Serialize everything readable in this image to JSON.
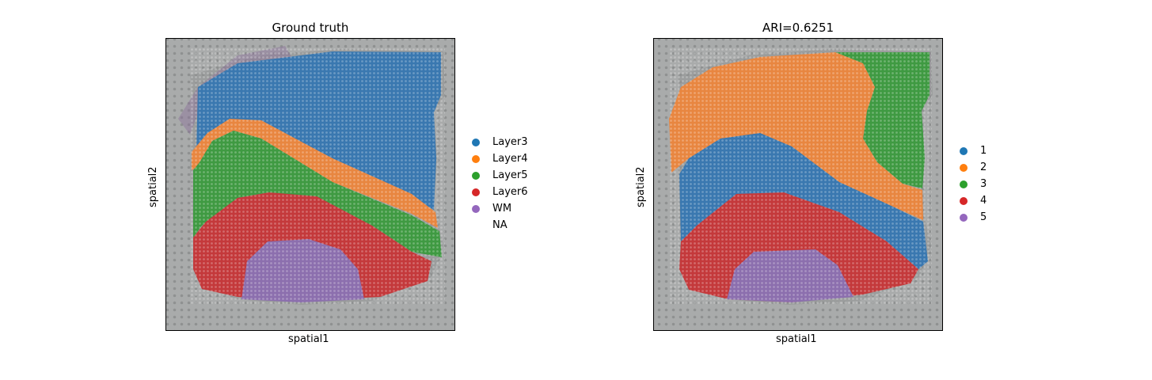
{
  "chart_data": [
    {
      "type": "scatter",
      "title": "Ground truth",
      "xlabel": "spatial1",
      "ylabel": "spatial2",
      "legend_position": "right",
      "legend": [
        {
          "label": "Layer3",
          "color": "#1f77b4"
        },
        {
          "label": "Layer4",
          "color": "#ff7f0e"
        },
        {
          "label": "Layer5",
          "color": "#2ca02c"
        },
        {
          "label": "Layer6",
          "color": "#d62728"
        },
        {
          "label": "WM",
          "color": "#9467bd"
        },
        {
          "label": "NA",
          "color": ""
        }
      ]
    },
    {
      "type": "scatter",
      "title": "ARI=0.6251",
      "xlabel": "spatial1",
      "ylabel": "spatial2",
      "legend_position": "right",
      "legend": [
        {
          "label": "1",
          "color": "#1f77b4"
        },
        {
          "label": "2",
          "color": "#ff7f0e"
        },
        {
          "label": "3",
          "color": "#2ca02c"
        },
        {
          "label": "4",
          "color": "#d62728"
        },
        {
          "label": "5",
          "color": "#9467bd"
        }
      ]
    }
  ]
}
